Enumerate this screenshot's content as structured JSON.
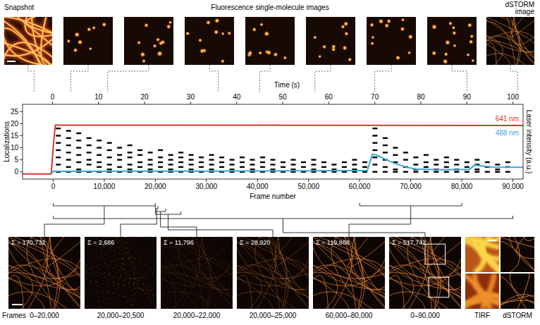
{
  "chart_data": {
    "type": "scatter",
    "x_label": "Frame number",
    "y_label": "Localizations",
    "x2_label": "Time (s)",
    "y2_label": "Laser intensity (a.u.)",
    "xlim": [
      -6000,
      92000
    ],
    "xticks": [
      0,
      {
        "value": 10000,
        "label": "10,000"
      },
      {
        "value": 20000,
        "label": "20,000"
      },
      {
        "value": 30000,
        "label": "30,000"
      },
      {
        "value": 40000,
        "label": "40,000"
      },
      {
        "value": 50000,
        "label": "50,000"
      },
      {
        "value": 60000,
        "label": "60,000"
      },
      {
        "value": 70000,
        "label": "70,000"
      },
      {
        "value": 80000,
        "label": "80,000"
      },
      {
        "value": 90000,
        "label": "90,000"
      }
    ],
    "x2lim": [
      -6.5,
      102.2
    ],
    "x2ticks": [
      0,
      10,
      20,
      30,
      40,
      50,
      60,
      70,
      80,
      90,
      100
    ],
    "ylim": [
      -3,
      28
    ],
    "yticks": [
      0,
      5,
      10,
      15,
      20,
      25
    ],
    "y2lim": [
      -3,
      28
    ],
    "series": [
      {
        "type": "scatter",
        "color": "#000000",
        "marker": "square",
        "x": [
          1000,
          1000,
          1000,
          1000,
          1000,
          1000,
          1000,
          3000,
          3000,
          3000,
          3000,
          3000,
          3000,
          3000,
          5000,
          5000,
          5000,
          5000,
          5000,
          5000,
          5000,
          7000,
          7000,
          7000,
          7000,
          7000,
          7000,
          9000,
          9000,
          9000,
          9000,
          9000,
          9000,
          11000,
          11000,
          11000,
          11000,
          11000,
          11000,
          13000,
          13000,
          13000,
          13000,
          13000,
          15000,
          15000,
          15000,
          15000,
          15000,
          15000,
          17000,
          17000,
          17000,
          17000,
          17000,
          19000,
          19000,
          19000,
          19000,
          19000,
          21000,
          21000,
          21000,
          21000,
          21000,
          23000,
          23000,
          23000,
          23000,
          23000,
          25000,
          25000,
          25000,
          25000,
          25000,
          27000,
          27000,
          27000,
          27000,
          27000,
          29000,
          29000,
          29000,
          29000,
          31000,
          31000,
          31000,
          31000,
          31000,
          33000,
          33000,
          33000,
          33000,
          35000,
          35000,
          35000,
          35000,
          37000,
          37000,
          37000,
          37000,
          39000,
          39000,
          39000,
          39000,
          41000,
          41000,
          41000,
          41000,
          43000,
          43000,
          43000,
          43000,
          45000,
          45000,
          45000,
          47000,
          47000,
          47000,
          47000,
          49000,
          49000,
          49000,
          51000,
          51000,
          51000,
          51000,
          53000,
          53000,
          53000,
          55000,
          55000,
          55000,
          57000,
          57000,
          57000,
          59000,
          59000,
          59000,
          59000,
          61000,
          61000,
          61000,
          63000,
          63000,
          63000,
          63000,
          63000,
          63000,
          63000,
          65000,
          65000,
          65000,
          65000,
          65000,
          65000,
          67000,
          67000,
          67000,
          67000,
          67000,
          69000,
          69000,
          69000,
          69000,
          71000,
          71000,
          71000,
          71000,
          73000,
          73000,
          73000,
          73000,
          75000,
          75000,
          75000,
          75000,
          77000,
          77000,
          77000,
          77000,
          79000,
          79000,
          79000,
          79000,
          81000,
          81000,
          81000,
          83000,
          83000,
          83000,
          83000,
          85000,
          85000,
          85000,
          87000,
          87000,
          87000,
          89000,
          89000,
          89000
        ],
        "values": [
          0,
          3,
          6,
          9,
          12,
          15,
          18,
          0,
          2,
          5,
          8,
          11,
          14,
          17,
          0,
          1,
          4,
          7,
          10,
          13,
          16,
          0,
          3,
          5,
          8,
          11,
          14,
          0,
          2,
          4,
          7,
          10,
          13,
          0,
          1,
          3,
          6,
          9,
          12,
          0,
          2,
          5,
          7,
          10,
          0,
          1,
          3,
          6,
          8,
          11,
          0,
          2,
          4,
          7,
          9,
          0,
          1,
          3,
          5,
          8,
          0,
          2,
          4,
          6,
          9,
          0,
          1,
          3,
          5,
          7,
          0,
          2,
          4,
          6,
          8,
          0,
          1,
          3,
          5,
          7,
          0,
          2,
          4,
          6,
          0,
          1,
          3,
          5,
          7,
          0,
          2,
          4,
          6,
          0,
          1,
          3,
          5,
          0,
          2,
          4,
          6,
          0,
          1,
          3,
          5,
          0,
          2,
          4,
          6,
          0,
          1,
          3,
          5,
          0,
          2,
          4,
          0,
          1,
          3,
          5,
          0,
          2,
          4,
          0,
          1,
          3,
          5,
          0,
          2,
          4,
          0,
          1,
          3,
          0,
          2,
          4,
          0,
          1,
          3,
          5,
          0,
          2,
          4,
          0,
          3,
          6,
          9,
          12,
          15,
          18,
          0,
          2,
          5,
          8,
          11,
          14,
          0,
          1,
          4,
          7,
          10,
          0,
          2,
          5,
          8,
          0,
          1,
          3,
          6,
          0,
          2,
          4,
          7,
          0,
          1,
          3,
          5,
          0,
          2,
          4,
          6,
          0,
          1,
          3,
          5,
          0,
          2,
          4,
          0,
          1,
          3,
          5,
          0,
          2,
          4,
          0,
          1,
          3,
          0,
          2,
          4
        ]
      },
      {
        "name": "641 nm",
        "type": "line",
        "color": "#d9362b",
        "line_style": "solid",
        "axis": "y2",
        "x": [
          -6000,
          -400,
          0,
          400,
          92000
        ],
        "values": [
          -0.9,
          -0.9,
          10,
          19.4,
          19.2
        ]
      },
      {
        "name": "488 nm",
        "type": "line",
        "color": "#3aa6d8",
        "line_style": "solid",
        "axis": "y2",
        "x": [
          -400,
          0,
          30000,
          61500,
          62500,
          63500,
          65000,
          67000,
          69000,
          71000,
          75000,
          81500,
          82500,
          84000,
          86000,
          92000
        ],
        "values": [
          -0.9,
          0.2,
          0.3,
          0.5,
          7.3,
          6.8,
          5.2,
          3.4,
          2.0,
          1.2,
          0.9,
          1.0,
          2.8,
          2.4,
          2.0,
          1.9
        ]
      }
    ]
  },
  "snapshot": {
    "label": "Snapshot",
    "time": -4
  },
  "single_molecule": {
    "label": "Fluorescence single-molecule images",
    "times": [
      4,
      12,
      36,
      45,
      57,
      70,
      90
    ]
  },
  "dstorm": {
    "label": "dSTORM image",
    "time": 101
  },
  "bottom_panels": [
    {
      "sum_label": "Σ = 170,732",
      "frames_label": "0–20,000",
      "frame_range": [
        0,
        20000
      ]
    },
    {
      "sum_label": "Σ = 2,686",
      "frames_label": "20,000–20,500",
      "frame_range": [
        20000,
        20500
      ]
    },
    {
      "sum_label": "Σ = 11,796",
      "frames_label": "20,000–22,000",
      "frame_range": [
        20000,
        22000
      ]
    },
    {
      "sum_label": "Σ = 28,920",
      "frames_label": "20,000–25,000",
      "frame_range": [
        20000,
        25000
      ]
    },
    {
      "sum_label": "Σ = 119,868",
      "frames_label": "60,000–80,000",
      "frame_range": [
        60000,
        80000
      ]
    },
    {
      "sum_label": "Σ = 517,742",
      "frames_label": "0–90,000",
      "frame_range": [
        0,
        90000
      ]
    }
  ],
  "frames_heading": "Frames",
  "zoom": {
    "tirf_label": "TIRF",
    "dstorm_label": "dSTORM"
  }
}
